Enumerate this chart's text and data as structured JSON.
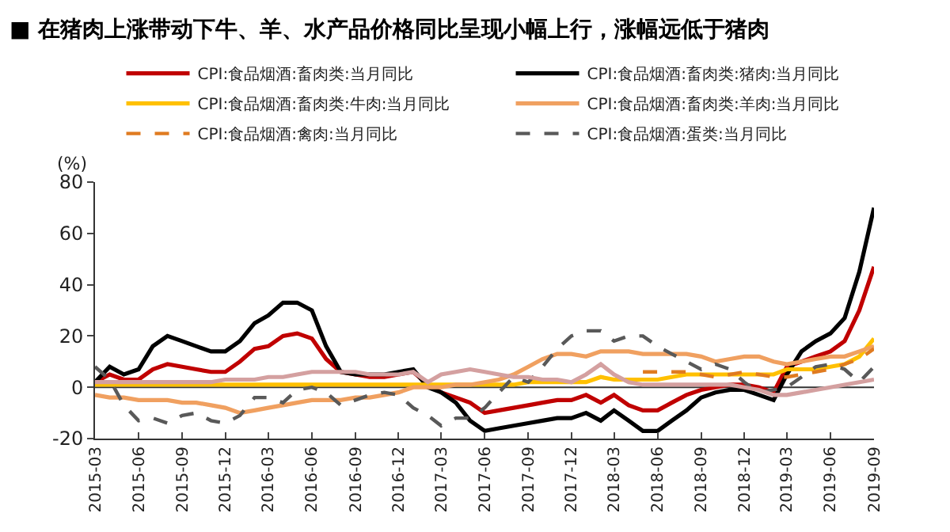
{
  "chart_data": {
    "type": "line",
    "title": "■ 在猪肉上涨带动下牛、羊、水产品价格同比呈现小幅上行，涨幅远低于猪肉",
    "ylabel": "(%)",
    "x": [
      "2015-03",
      "2015-04",
      "2015-05",
      "2015-06",
      "2015-07",
      "2015-08",
      "2015-09",
      "2015-10",
      "2015-11",
      "2015-12",
      "2016-01",
      "2016-02",
      "2016-03",
      "2016-04",
      "2016-05",
      "2016-06",
      "2016-07",
      "2016-08",
      "2016-09",
      "2016-10",
      "2016-11",
      "2016-12",
      "2017-01",
      "2017-02",
      "2017-03",
      "2017-04",
      "2017-05",
      "2017-06",
      "2017-07",
      "2017-08",
      "2017-09",
      "2017-10",
      "2017-11",
      "2017-12",
      "2018-01",
      "2018-02",
      "2018-03",
      "2018-04",
      "2018-05",
      "2018-06",
      "2018-07",
      "2018-08",
      "2018-09",
      "2018-10",
      "2018-11",
      "2018-12",
      "2019-01",
      "2019-02",
      "2019-03",
      "2019-04",
      "2019-05",
      "2019-06",
      "2019-07",
      "2019-08",
      "2019-09"
    ],
    "series": [
      {
        "name": "CPI:食品烟酒:畜肉类:当月同比",
        "color": "#c00000",
        "values": [
          2,
          5,
          3,
          3,
          7,
          9,
          8,
          7,
          6,
          6,
          10,
          15,
          16,
          20,
          21,
          19,
          11,
          6,
          5,
          4,
          4,
          5,
          6,
          1,
          -2,
          -4,
          -6,
          -10,
          -9,
          -8,
          -7,
          -6,
          -5,
          -5,
          -3,
          -6,
          -3,
          -7,
          -9,
          -9,
          -6,
          -3,
          -1,
          0,
          1,
          1,
          0,
          -2,
          8,
          10,
          12,
          14,
          18,
          30,
          47
        ]
      },
      {
        "name": "CPI:食品烟酒:畜肉类:猪肉:当月同比",
        "color": "#000000",
        "values": [
          2,
          8,
          5,
          7,
          16,
          20,
          18,
          16,
          14,
          14,
          18,
          25,
          28,
          33,
          33,
          30,
          16,
          6,
          5,
          5,
          5,
          6,
          7,
          0,
          -2,
          -6,
          -13,
          -17,
          -16,
          -15,
          -14,
          -13,
          -12,
          -12,
          -10,
          -13,
          -9,
          -13,
          -17,
          -17,
          -13,
          -9,
          -4,
          -2,
          -1,
          -1,
          -3,
          -5,
          5,
          14,
          18,
          21,
          27,
          45,
          70
        ]
      },
      {
        "name": "CPI:食品烟酒:畜肉类:牛肉:当月同比",
        "color": "#ffc000",
        "values": [
          1,
          1,
          1,
          1,
          1,
          1,
          1,
          1,
          1,
          1,
          1,
          1,
          1,
          1,
          1,
          1,
          1,
          1,
          1,
          1,
          1,
          1,
          1,
          1,
          1,
          1,
          1,
          1,
          1,
          1,
          2,
          2,
          2,
          2,
          2,
          4,
          3,
          3,
          3,
          3,
          4,
          5,
          5,
          5,
          5,
          5,
          5,
          5,
          7,
          7,
          7,
          8,
          9,
          12,
          19
        ]
      },
      {
        "name": "CPI:食品烟酒:畜肉类:羊肉:当月同比",
        "color": "#f0a060",
        "values": [
          -3,
          -4,
          -4,
          -5,
          -5,
          -5,
          -6,
          -6,
          -7,
          -8,
          -10,
          -9,
          -8,
          -7,
          -6,
          -5,
          -5,
          -5,
          -4,
          -4,
          -3,
          -2,
          0,
          0,
          0,
          1,
          1,
          2,
          3,
          5,
          8,
          11,
          13,
          13,
          12,
          14,
          14,
          14,
          13,
          13,
          13,
          13,
          12,
          10,
          11,
          12,
          12,
          10,
          9,
          10,
          11,
          12,
          12,
          14,
          16
        ]
      },
      {
        "name": "CPI:食品烟酒:禽肉:当月同比",
        "color": "#e07b20",
        "line_style": "dashed",
        "values": [
          null,
          null,
          null,
          null,
          null,
          null,
          null,
          null,
          null,
          null,
          null,
          null,
          null,
          null,
          null,
          null,
          null,
          null,
          null,
          null,
          null,
          null,
          null,
          null,
          null,
          null,
          null,
          null,
          null,
          null,
          null,
          null,
          null,
          null,
          null,
          null,
          null,
          null,
          6,
          6,
          6,
          6,
          5,
          4,
          5,
          6,
          5,
          4,
          4,
          5,
          6,
          7,
          9,
          11,
          15
        ]
      },
      {
        "name": "CPI:食品烟酒:蛋类:当月同比",
        "color": "#595959",
        "line_style": "dashed",
        "values": [
          8,
          3,
          -7,
          -13,
          -12,
          -14,
          -11,
          -10,
          -13,
          -14,
          -11,
          -4,
          -4,
          -6,
          -1,
          0,
          -2,
          -7,
          -5,
          -3,
          -2,
          -3,
          -8,
          -11,
          -15,
          -12,
          -12,
          -8,
          -2,
          4,
          2,
          8,
          15,
          20,
          22,
          22,
          18,
          20,
          20,
          16,
          13,
          10,
          7,
          9,
          7,
          2,
          -2,
          -1,
          0,
          4,
          8,
          9,
          7,
          2,
          8
        ]
      },
      {
        "color": "#d4a0a0",
        "values": [
          2,
          2,
          2,
          2,
          2,
          2,
          2,
          2,
          2,
          3,
          3,
          3,
          4,
          4,
          5,
          6,
          6,
          6,
          6,
          5,
          5,
          5,
          6,
          2,
          5,
          6,
          7,
          6,
          5,
          4,
          4,
          3,
          3,
          2,
          5,
          9,
          5,
          2,
          1,
          1,
          1,
          1,
          1,
          1,
          1,
          0,
          -1,
          -3,
          -3,
          -2,
          -1,
          0,
          1,
          2,
          3
        ]
      }
    ],
    "xlim": [
      "2015-03",
      "2019-09"
    ],
    "xticks": [
      "2015-03",
      "2015-06",
      "2015-09",
      "2015-12",
      "2016-03",
      "2016-06",
      "2016-09",
      "2016-12",
      "2017-03",
      "2017-06",
      "2017-09",
      "2017-12",
      "2018-03",
      "2018-06",
      "2018-09",
      "2018-12",
      "2019-03",
      "2019-06",
      "2019-09"
    ],
    "ylim": [
      -20,
      80
    ],
    "yticks": [
      -20,
      0,
      20,
      40,
      60,
      80
    ],
    "ref_lines": [
      {
        "axis": "y",
        "value": 0,
        "color": "#333333"
      }
    ],
    "marker": "none",
    "line_style": "solid",
    "grid": false,
    "legend": "top"
  }
}
